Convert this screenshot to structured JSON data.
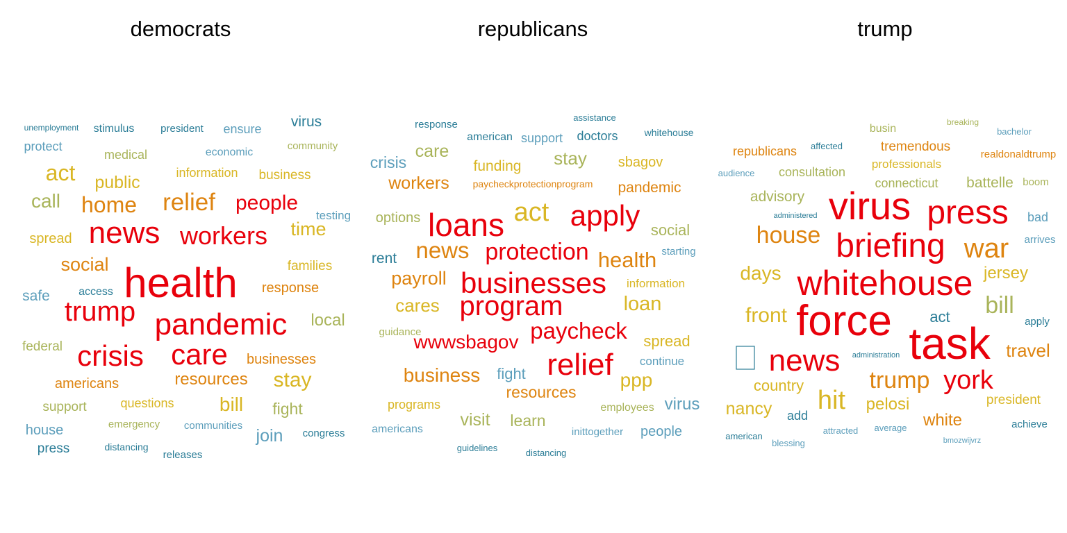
{
  "chart_data": [
    {
      "type": "wordcloud",
      "title": "democrats",
      "words": [
        {
          "text": "unemployment",
          "rank": 5
        },
        {
          "text": "stimulus",
          "rank": 4
        },
        {
          "text": "president",
          "rank": 4
        },
        {
          "text": "ensure",
          "rank": 3
        },
        {
          "text": "virus",
          "rank": 3
        },
        {
          "text": "protect",
          "rank": 3
        },
        {
          "text": "economic",
          "rank": 3
        },
        {
          "text": "community",
          "rank": 3
        },
        {
          "text": "medical",
          "rank": 3
        },
        {
          "text": "act",
          "rank": 2
        },
        {
          "text": "information",
          "rank": 3
        },
        {
          "text": "business",
          "rank": 3
        },
        {
          "text": "public",
          "rank": 2
        },
        {
          "text": "call",
          "rank": 2
        },
        {
          "text": "home",
          "rank": 2
        },
        {
          "text": "relief",
          "rank": 1
        },
        {
          "text": "people",
          "rank": 1
        },
        {
          "text": "testing",
          "rank": 3
        },
        {
          "text": "time",
          "rank": 2
        },
        {
          "text": "spread",
          "rank": 3
        },
        {
          "text": "news",
          "rank": 1
        },
        {
          "text": "workers",
          "rank": 1
        },
        {
          "text": "social",
          "rank": 2
        },
        {
          "text": "families",
          "rank": 3
        },
        {
          "text": "health",
          "rank": 1
        },
        {
          "text": "access",
          "rank": 4
        },
        {
          "text": "response",
          "rank": 3
        },
        {
          "text": "safe",
          "rank": 3
        },
        {
          "text": "trump",
          "rank": 1
        },
        {
          "text": "pandemic",
          "rank": 1
        },
        {
          "text": "local",
          "rank": 3
        },
        {
          "text": "federal",
          "rank": 3
        },
        {
          "text": "crisis",
          "rank": 1
        },
        {
          "text": "care",
          "rank": 1
        },
        {
          "text": "businesses",
          "rank": 3
        },
        {
          "text": "americans",
          "rank": 3
        },
        {
          "text": "resources",
          "rank": 2
        },
        {
          "text": "stay",
          "rank": 2
        },
        {
          "text": "support",
          "rank": 3
        },
        {
          "text": "questions",
          "rank": 3
        },
        {
          "text": "bill",
          "rank": 2
        },
        {
          "text": "fight",
          "rank": 3
        },
        {
          "text": "emergency",
          "rank": 3
        },
        {
          "text": "house",
          "rank": 3
        },
        {
          "text": "communities",
          "rank": 4
        },
        {
          "text": "join",
          "rank": 3
        },
        {
          "text": "congress",
          "rank": 4
        },
        {
          "text": "press",
          "rank": 3
        },
        {
          "text": "distancing",
          "rank": 4
        },
        {
          "text": "releases",
          "rank": 4
        }
      ]
    },
    {
      "type": "wordcloud",
      "title": "republicans",
      "words": [
        {
          "text": "assistance",
          "rank": 5
        },
        {
          "text": "response",
          "rank": 4
        },
        {
          "text": "american",
          "rank": 4
        },
        {
          "text": "support",
          "rank": 3
        },
        {
          "text": "doctors",
          "rank": 3
        },
        {
          "text": "whitehouse",
          "rank": 4
        },
        {
          "text": "care",
          "rank": 2
        },
        {
          "text": "crisis",
          "rank": 3
        },
        {
          "text": "stay",
          "rank": 2
        },
        {
          "text": "funding",
          "rank": 3
        },
        {
          "text": "sbagov",
          "rank": 3
        },
        {
          "text": "workers",
          "rank": 2
        },
        {
          "text": "paycheckprotectionprogram",
          "rank": 4
        },
        {
          "text": "pandemic",
          "rank": 3
        },
        {
          "text": "options",
          "rank": 3
        },
        {
          "text": "loans",
          "rank": 1
        },
        {
          "text": "act",
          "rank": 2
        },
        {
          "text": "apply",
          "rank": 1
        },
        {
          "text": "social",
          "rank": 3
        },
        {
          "text": "rent",
          "rank": 3
        },
        {
          "text": "news",
          "rank": 2
        },
        {
          "text": "protection",
          "rank": 1
        },
        {
          "text": "starting",
          "rank": 4
        },
        {
          "text": "health",
          "rank": 2
        },
        {
          "text": "payroll",
          "rank": 2
        },
        {
          "text": "businesses",
          "rank": 1
        },
        {
          "text": "information",
          "rank": 3
        },
        {
          "text": "cares",
          "rank": 2
        },
        {
          "text": "program",
          "rank": 1
        },
        {
          "text": "loan",
          "rank": 2
        },
        {
          "text": "guidance",
          "rank": 4
        },
        {
          "text": "wwwsbagov",
          "rank": 1
        },
        {
          "text": "paycheck",
          "rank": 1
        },
        {
          "text": "spread",
          "rank": 3
        },
        {
          "text": "relief",
          "rank": 1
        },
        {
          "text": "continue",
          "rank": 4
        },
        {
          "text": "business",
          "rank": 2
        },
        {
          "text": "fight",
          "rank": 3
        },
        {
          "text": "ppp",
          "rank": 2
        },
        {
          "text": "resources",
          "rank": 2
        },
        {
          "text": "programs",
          "rank": 3
        },
        {
          "text": "employees",
          "rank": 3
        },
        {
          "text": "virus",
          "rank": 3
        },
        {
          "text": "visit",
          "rank": 2
        },
        {
          "text": "learn",
          "rank": 3
        },
        {
          "text": "americans",
          "rank": 4
        },
        {
          "text": "inittogether",
          "rank": 4
        },
        {
          "text": "people",
          "rank": 3
        },
        {
          "text": "guidelines",
          "rank": 5
        },
        {
          "text": "distancing",
          "rank": 5
        }
      ]
    },
    {
      "type": "wordcloud",
      "title": "trump",
      "words": [
        {
          "text": "busin",
          "rank": 4
        },
        {
          "text": "breaking",
          "rank": 5
        },
        {
          "text": "bachelor",
          "rank": 5
        },
        {
          "text": "republicans",
          "rank": 3
        },
        {
          "text": "affected",
          "rank": 5
        },
        {
          "text": "tremendous",
          "rank": 3
        },
        {
          "text": "realdonaldtrump",
          "rank": 4
        },
        {
          "text": "audience",
          "rank": 5
        },
        {
          "text": "consultation",
          "rank": 3
        },
        {
          "text": "professionals",
          "rank": 3
        },
        {
          "text": "connecticut",
          "rank": 3
        },
        {
          "text": "battelle",
          "rank": 3
        },
        {
          "text": "boom",
          "rank": 4
        },
        {
          "text": "advisory",
          "rank": 3
        },
        {
          "text": "administered",
          "rank": 5
        },
        {
          "text": "virus",
          "rank": 1
        },
        {
          "text": "press",
          "rank": 1
        },
        {
          "text": "bad",
          "rank": 4
        },
        {
          "text": "house",
          "rank": 2
        },
        {
          "text": "briefing",
          "rank": 1
        },
        {
          "text": "war",
          "rank": 1
        },
        {
          "text": "arrives",
          "rank": 5
        },
        {
          "text": "days",
          "rank": 2
        },
        {
          "text": "whitehouse",
          "rank": 1
        },
        {
          "text": "jersey",
          "rank": 3
        },
        {
          "text": "bill",
          "rank": 2
        },
        {
          "text": "front",
          "rank": 2
        },
        {
          "text": "force",
          "rank": 1
        },
        {
          "text": "act",
          "rank": 3
        },
        {
          "text": "apply",
          "rank": 4
        },
        {
          "text": "task",
          "rank": 1
        },
        {
          "text": "administration",
          "rank": 5
        },
        {
          "text": "news",
          "rank": 1
        },
        {
          "text": "travel",
          "rank": 3
        },
        {
          "text": "country",
          "rank": 3
        },
        {
          "text": "trump",
          "rank": 2
        },
        {
          "text": "york",
          "rank": 1
        },
        {
          "text": "hit",
          "rank": 2
        },
        {
          "text": "pelosi",
          "rank": 3
        },
        {
          "text": "president",
          "rank": 3
        },
        {
          "text": "nancy",
          "rank": 3
        },
        {
          "text": "add",
          "rank": 4
        },
        {
          "text": "white",
          "rank": 3
        },
        {
          "text": "achieve",
          "rank": 4
        },
        {
          "text": "american",
          "rank": 5
        },
        {
          "text": "attracted",
          "rank": 5
        },
        {
          "text": "average",
          "rank": 5
        },
        {
          "text": "blessing",
          "rank": 5
        },
        {
          "text": "bmozwijvrz",
          "rank": 5
        }
      ]
    }
  ],
  "colors": {
    "rank1": "#e8000b",
    "rank2": "#de8410",
    "rank3": "#d9b624",
    "rank4": "#a9b45a",
    "rank5": "#5c9ebb",
    "rank6": "#2b7d97"
  }
}
